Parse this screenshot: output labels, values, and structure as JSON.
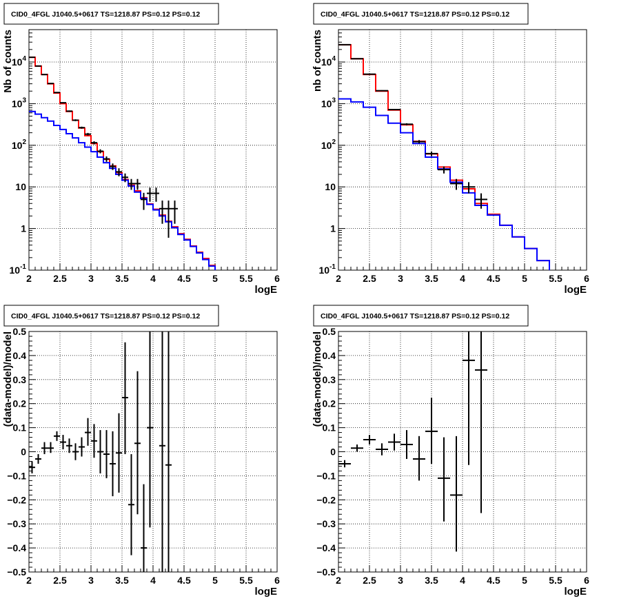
{
  "chart_data": [
    {
      "type": "histogram-line",
      "title": "CID0_4FGL J1040.5+0617 TS=1218.87 PS=0.12 PS=0.12",
      "xlabel": "logE",
      "ylabel": "Nb of counts",
      "xlim": [
        2,
        6
      ],
      "ylim": [
        0.1,
        60000
      ],
      "yscale": "log",
      "grid": true,
      "xticks": [
        "2",
        "2.5",
        "3",
        "3.5",
        "4",
        "4.5",
        "5",
        "5.5",
        "6"
      ],
      "yticks": [
        {
          "v": 0.1,
          "base": "10",
          "exp": "-1"
        },
        {
          "v": 1,
          "base": "1",
          "exp": ""
        },
        {
          "v": 10,
          "base": "10",
          "exp": ""
        },
        {
          "v": 100,
          "base": "10",
          "exp": "2"
        },
        {
          "v": 1000,
          "base": "10",
          "exp": "3"
        },
        {
          "v": 10000,
          "base": "10",
          "exp": "4"
        }
      ],
      "bin_edges": [
        2,
        2.1,
        2.2,
        2.3,
        2.4,
        2.5,
        2.6,
        2.7,
        2.8,
        2.9,
        3,
        3.1,
        3.2,
        3.3,
        3.4,
        3.5,
        3.6,
        3.7,
        3.8,
        3.9,
        4,
        4.1,
        4.2,
        4.3,
        4.4,
        4.5,
        4.6,
        4.7,
        4.8,
        4.9,
        5,
        5.1,
        5.2,
        5.3,
        5.4,
        5.5,
        5.6,
        5.7,
        5.8,
        5.9,
        6
      ],
      "series": [
        {
          "color": "#ff0000",
          "values": [
            13000,
            8000,
            5000,
            3000,
            1800,
            1000,
            650,
            400,
            260,
            170,
            110,
            70,
            46,
            32,
            22,
            15,
            11,
            8,
            5.5,
            3.9,
            2.9,
            2.1,
            1.5,
            1.1,
            0.75,
            0.55,
            0.38,
            0.27,
            0.19,
            0.13,
            0.095,
            0.085,
            0.08,
            0.08,
            0.08,
            0.08,
            0.08,
            0.08,
            0.08,
            0.08
          ]
        },
        {
          "color": "#0000ff",
          "values": [
            650,
            560,
            460,
            380,
            300,
            240,
            190,
            150,
            115,
            90,
            70,
            52,
            38,
            28,
            20,
            14.5,
            10.5,
            7.5,
            5.3,
            3.8,
            2.8,
            2.0,
            1.45,
            1.05,
            0.72,
            0.53,
            0.37,
            0.26,
            0.18,
            0.125,
            0.095,
            0.085,
            0.08,
            0.08,
            0.08,
            0.08,
            0.08,
            0.08,
            0.08,
            0.08
          ]
        }
      ],
      "points": [
        {
          "x": 2.05,
          "y": 13000,
          "ylo": 12800,
          "yhi": 13200
        },
        {
          "x": 2.15,
          "y": 8000,
          "ylo": 7850,
          "yhi": 8150
        },
        {
          "x": 2.25,
          "y": 5000,
          "ylo": 4900,
          "yhi": 5100
        },
        {
          "x": 2.35,
          "y": 3050,
          "ylo": 2990,
          "yhi": 3110
        },
        {
          "x": 2.45,
          "y": 1850,
          "ylo": 1800,
          "yhi": 1900
        },
        {
          "x": 2.55,
          "y": 1050,
          "ylo": 1020,
          "yhi": 1080
        },
        {
          "x": 2.65,
          "y": 660,
          "ylo": 635,
          "yhi": 685
        },
        {
          "x": 2.75,
          "y": 400,
          "ylo": 380,
          "yhi": 420
        },
        {
          "x": 2.85,
          "y": 265,
          "ylo": 250,
          "yhi": 280
        },
        {
          "x": 2.95,
          "y": 185,
          "ylo": 172,
          "yhi": 198
        },
        {
          "x": 3.05,
          "y": 115,
          "ylo": 105,
          "yhi": 125
        },
        {
          "x": 3.15,
          "y": 72,
          "ylo": 64,
          "yhi": 80
        },
        {
          "x": 3.25,
          "y": 47,
          "ylo": 40,
          "yhi": 54
        },
        {
          "x": 3.35,
          "y": 31,
          "ylo": 25.5,
          "yhi": 36.5
        },
        {
          "x": 3.45,
          "y": 23,
          "ylo": 18,
          "yhi": 28
        },
        {
          "x": 3.55,
          "y": 17,
          "ylo": 13,
          "yhi": 21
        },
        {
          "x": 3.65,
          "y": 12,
          "ylo": 8.5,
          "yhi": 15.5
        },
        {
          "x": 3.75,
          "y": 12,
          "ylo": 8.5,
          "yhi": 15.5
        },
        {
          "x": 3.85,
          "y": 5,
          "ylo": 2.8,
          "yhi": 7.2
        },
        {
          "x": 3.95,
          "y": 7,
          "ylo": 4.4,
          "yhi": 9.6
        },
        {
          "x": 4.05,
          "y": 7,
          "ylo": 4.4,
          "yhi": 9.6
        },
        {
          "x": 4.15,
          "y": 3,
          "ylo": 1.3,
          "yhi": 4.7
        },
        {
          "x": 4.25,
          "y": 3,
          "ylo": 0.6,
          "yhi": 4.7
        },
        {
          "x": 4.35,
          "y": 3,
          "ylo": 1.3,
          "yhi": 4.7
        }
      ]
    },
    {
      "type": "histogram-line",
      "title": "CID0_4FGL J1040.5+0617 TS=1218.87 PS=0.12 PS=0.12",
      "xlabel": "logE",
      "ylabel": "nb of counts",
      "xlim": [
        2,
        6
      ],
      "ylim": [
        0.1,
        60000
      ],
      "yscale": "log",
      "grid": true,
      "xticks": [
        "2",
        "2.5",
        "3",
        "3.5",
        "4",
        "4.5",
        "5",
        "5.5",
        "6"
      ],
      "yticks": [
        {
          "v": 0.1,
          "base": "10",
          "exp": "-1"
        },
        {
          "v": 1,
          "base": "1",
          "exp": ""
        },
        {
          "v": 10,
          "base": "10",
          "exp": ""
        },
        {
          "v": 100,
          "base": "10",
          "exp": "2"
        },
        {
          "v": 1000,
          "base": "10",
          "exp": "3"
        },
        {
          "v": 10000,
          "base": "10",
          "exp": "4"
        }
      ],
      "bin_edges": [
        2,
        2.2,
        2.4,
        2.6,
        2.8,
        3,
        3.2,
        3.4,
        3.6,
        3.8,
        4,
        4.2,
        4.4,
        4.6,
        4.8,
        5,
        5.2,
        5.4,
        5.6,
        5.8,
        6
      ],
      "series": [
        {
          "color": "#ff0000",
          "values": [
            26000,
            12000,
            5000,
            2000,
            700,
            310,
            125,
            62,
            30,
            14.5,
            9,
            4,
            2.2,
            1.2,
            0.63,
            0.33,
            0.17,
            0.085,
            0.08,
            0.08
          ]
        },
        {
          "color": "#0000ff",
          "values": [
            1300,
            1100,
            820,
            520,
            340,
            200,
            110,
            52,
            27,
            13,
            7.2,
            3.6,
            2.1,
            1.2,
            0.63,
            0.33,
            0.17,
            0.085,
            0.08,
            0.08
          ]
        }
      ],
      "points": [
        {
          "x": 2.1,
          "y": 26000,
          "ylo": 25700,
          "yhi": 26300
        },
        {
          "x": 2.3,
          "y": 12000,
          "ylo": 11800,
          "yhi": 12200
        },
        {
          "x": 2.5,
          "y": 5100,
          "ylo": 5000,
          "yhi": 5200
        },
        {
          "x": 2.7,
          "y": 2050,
          "ylo": 2000,
          "yhi": 2100
        },
        {
          "x": 2.9,
          "y": 720,
          "ylo": 695,
          "yhi": 745
        },
        {
          "x": 3.1,
          "y": 320,
          "ylo": 302,
          "yhi": 338
        },
        {
          "x": 3.3,
          "y": 122,
          "ylo": 111,
          "yhi": 133
        },
        {
          "x": 3.5,
          "y": 63,
          "ylo": 55,
          "yhi": 71
        },
        {
          "x": 3.7,
          "y": 26,
          "ylo": 21,
          "yhi": 31
        },
        {
          "x": 3.9,
          "y": 12,
          "ylo": 8.5,
          "yhi": 15.5
        },
        {
          "x": 4.1,
          "y": 10,
          "ylo": 7,
          "yhi": 13
        },
        {
          "x": 4.3,
          "y": 5,
          "ylo": 3,
          "yhi": 7
        }
      ]
    },
    {
      "type": "scatter-errorbars",
      "title": "CID0_4FGL J1040.5+0617 TS=1218.87 PS=0.12 PS=0.12",
      "xlabel": "logE",
      "ylabel": "(data-model)/model",
      "xlim": [
        2,
        6
      ],
      "ylim": [
        -0.5,
        0.5
      ],
      "grid": true,
      "xticks": [
        "2",
        "2.5",
        "3",
        "3.5",
        "4",
        "4.5",
        "5",
        "5.5",
        "6"
      ],
      "yticks": [
        "−0.5",
        "−0.4",
        "−0.3",
        "−0.2",
        "−0.1",
        "0",
        "0.1",
        "0.2",
        "0.3",
        "0.4",
        "0.5"
      ],
      "xhalf": 0.05,
      "points": [
        {
          "x": 2.05,
          "y": -0.065,
          "ylo": -0.09,
          "yhi": -0.04
        },
        {
          "x": 2.15,
          "y": -0.03,
          "ylo": -0.05,
          "yhi": -0.01
        },
        {
          "x": 2.25,
          "y": 0.015,
          "ylo": -0.01,
          "yhi": 0.04
        },
        {
          "x": 2.35,
          "y": 0.015,
          "ylo": -0.005,
          "yhi": 0.04
        },
        {
          "x": 2.45,
          "y": 0.065,
          "ylo": 0.045,
          "yhi": 0.085
        },
        {
          "x": 2.55,
          "y": 0.04,
          "ylo": 0.01,
          "yhi": 0.07
        },
        {
          "x": 2.65,
          "y": 0.025,
          "ylo": -0.005,
          "yhi": 0.055
        },
        {
          "x": 2.75,
          "y": 0.0,
          "ylo": -0.035,
          "yhi": 0.035
        },
        {
          "x": 2.85,
          "y": 0.02,
          "ylo": -0.02,
          "yhi": 0.06
        },
        {
          "x": 2.95,
          "y": 0.08,
          "ylo": 0.025,
          "yhi": 0.14
        },
        {
          "x": 3.05,
          "y": 0.045,
          "ylo": -0.025,
          "yhi": 0.115
        },
        {
          "x": 3.15,
          "y": 0.0,
          "ylo": -0.09,
          "yhi": 0.09
        },
        {
          "x": 3.25,
          "y": -0.01,
          "ylo": -0.11,
          "yhi": 0.09
        },
        {
          "x": 3.35,
          "y": -0.05,
          "ylo": -0.185,
          "yhi": 0.085
        },
        {
          "x": 3.45,
          "y": -0.005,
          "ylo": -0.17,
          "yhi": 0.16
        },
        {
          "x": 3.55,
          "y": 0.225,
          "ylo": -0.01,
          "yhi": 0.455
        },
        {
          "x": 3.65,
          "y": -0.22,
          "ylo": -0.43,
          "yhi": -0.01
        },
        {
          "x": 3.75,
          "y": 0.035,
          "ylo": -0.26,
          "yhi": 0.335
        },
        {
          "x": 3.85,
          "y": -0.4,
          "ylo": -0.5,
          "yhi": -0.135
        },
        {
          "x": 3.95,
          "y": 0.1,
          "ylo": -0.315,
          "yhi": 0.5
        },
        {
          "x": 4.15,
          "y": 0.025,
          "ylo": -0.5,
          "yhi": 0.5
        },
        {
          "x": 4.25,
          "y": -0.055,
          "ylo": -0.5,
          "yhi": 0.5
        }
      ]
    },
    {
      "type": "scatter-errorbars",
      "title": "CID0_4FGL J1040.5+0617 TS=1218.87 PS=0.12 PS=0.12",
      "xlabel": "logE",
      "ylabel": "(data-model)/model",
      "xlim": [
        2,
        6
      ],
      "ylim": [
        -0.5,
        0.5
      ],
      "grid": true,
      "xticks": [
        "2",
        "2.5",
        "3",
        "3.5",
        "4",
        "4.5",
        "5",
        "5.5",
        "6"
      ],
      "yticks": [
        "−0.5",
        "−0.4",
        "−0.3",
        "−0.2",
        "−0.1",
        "0",
        "0.1",
        "0.2",
        "0.3",
        "0.4",
        "0.5"
      ],
      "xhalf": 0.1,
      "points": [
        {
          "x": 2.1,
          "y": -0.05,
          "ylo": -0.065,
          "yhi": -0.035
        },
        {
          "x": 2.3,
          "y": 0.015,
          "ylo": 0.0,
          "yhi": 0.03
        },
        {
          "x": 2.5,
          "y": 0.05,
          "ylo": 0.03,
          "yhi": 0.07
        },
        {
          "x": 2.7,
          "y": 0.01,
          "ylo": -0.015,
          "yhi": 0.035
        },
        {
          "x": 2.9,
          "y": 0.04,
          "ylo": 0.005,
          "yhi": 0.075
        },
        {
          "x": 3.1,
          "y": 0.03,
          "ylo": -0.03,
          "yhi": 0.09
        },
        {
          "x": 3.3,
          "y": -0.03,
          "ylo": -0.12,
          "yhi": 0.065
        },
        {
          "x": 3.5,
          "y": 0.085,
          "ylo": -0.05,
          "yhi": 0.225
        },
        {
          "x": 3.7,
          "y": -0.11,
          "ylo": -0.29,
          "yhi": 0.06
        },
        {
          "x": 3.9,
          "y": -0.18,
          "ylo": -0.415,
          "yhi": 0.065
        },
        {
          "x": 4.1,
          "y": 0.38,
          "ylo": -0.055,
          "yhi": 0.5
        },
        {
          "x": 4.3,
          "y": 0.34,
          "ylo": -0.255,
          "yhi": 0.5
        }
      ]
    }
  ]
}
